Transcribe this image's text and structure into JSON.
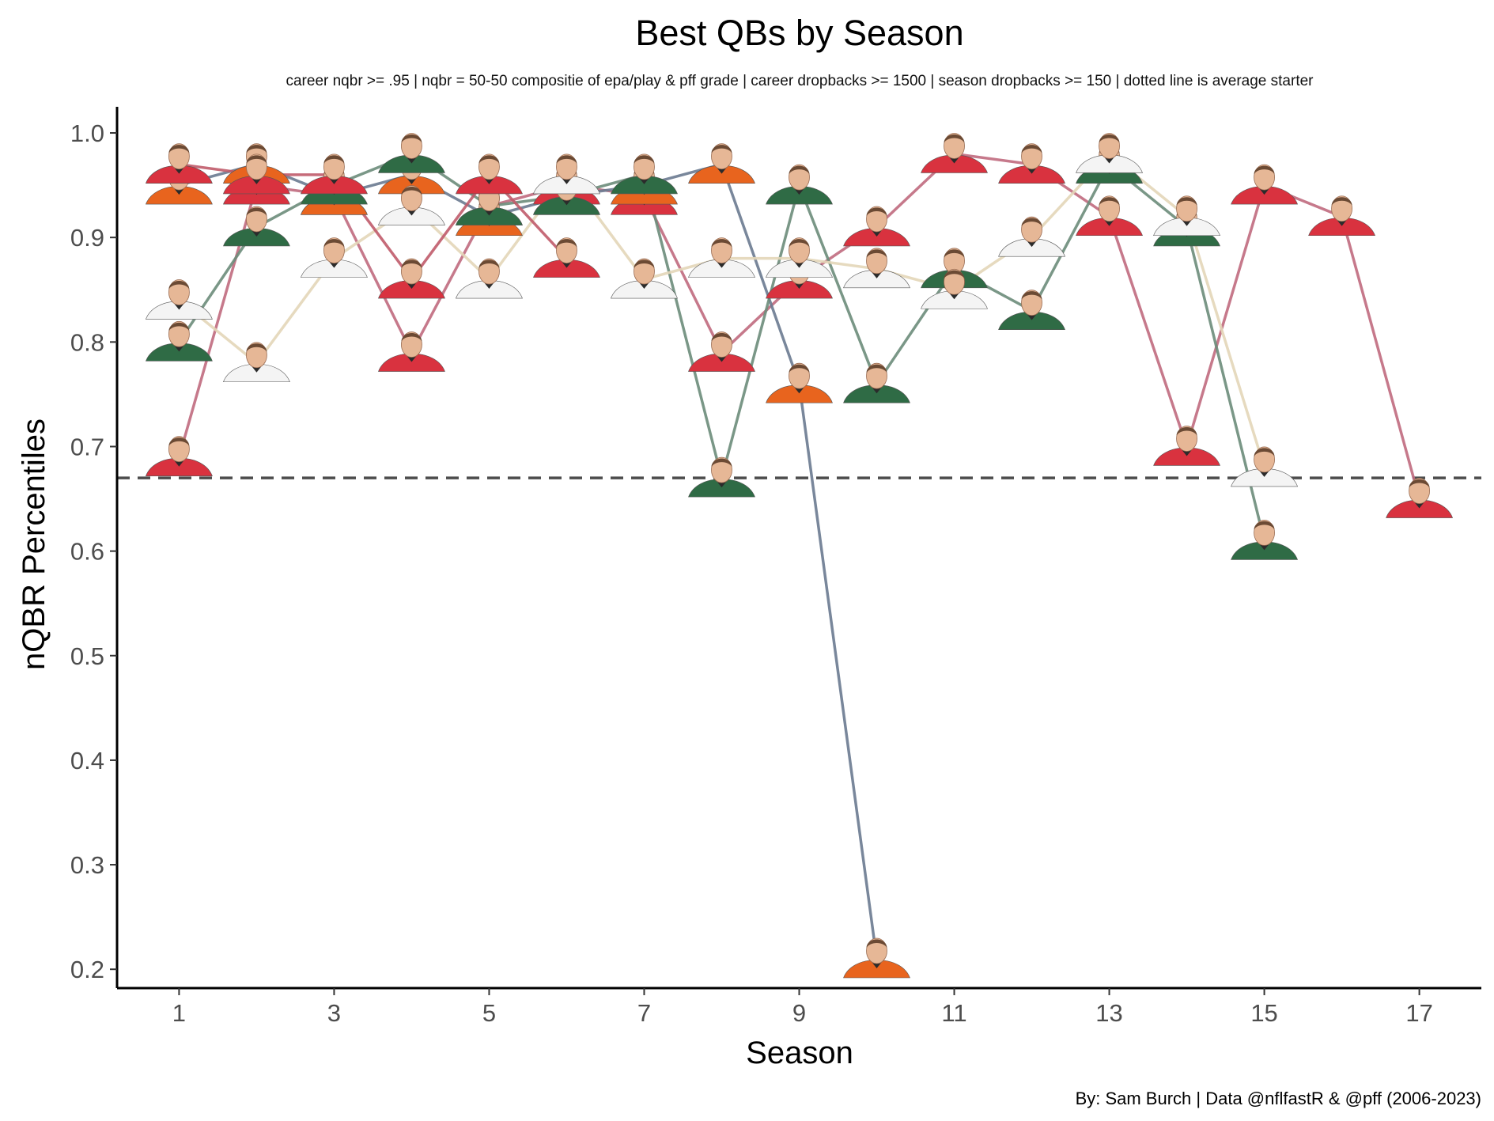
{
  "chart_data": {
    "type": "line",
    "title": "Best QBs by Season",
    "subtitle": "career nqbr >= .95  |  nqbr = 50-50 compositie of epa/play & pff grade  |  career dropbacks >= 1500  |  season dropbacks >= 150  |  dotted line is average starter",
    "caption": "By: Sam Burch  |  Data @nflfastR & @pff (2006-2023)",
    "xlabel": "Season",
    "ylabel": "nQBR Percentiles",
    "xlim": [
      0.2,
      17.8
    ],
    "ylim": [
      0.182,
      1.025
    ],
    "x_ticks": [
      1,
      3,
      5,
      7,
      9,
      11,
      13,
      15,
      17
    ],
    "y_ticks": [
      0.2,
      0.3,
      0.4,
      0.5,
      0.6,
      0.7,
      0.8,
      0.9,
      1.0
    ],
    "x_tick_labels": [
      "1",
      "3",
      "5",
      "7",
      "9",
      "11",
      "13",
      "15",
      "17"
    ],
    "y_tick_labels": [
      "0.2",
      "0.3",
      "0.4",
      "0.5",
      "0.6",
      "0.7",
      "0.8",
      "0.9",
      "1.0"
    ],
    "reference_line": {
      "y": 0.67,
      "style": "dashed",
      "color": "#4d4d4d"
    },
    "grid": false,
    "legend": "none",
    "series": [
      {
        "color": "#c06a7e",
        "jersey": "#d9323f",
        "x": [
          1,
          2,
          3,
          4,
          5,
          6,
          7,
          8,
          9,
          10,
          11,
          12,
          13,
          14,
          15,
          16,
          17
        ],
        "y": [
          0.69,
          0.95,
          0.94,
          0.79,
          0.93,
          0.95,
          0.94,
          0.79,
          0.86,
          0.91,
          0.98,
          0.97,
          0.92,
          0.7,
          0.95,
          0.92,
          0.65
        ]
      },
      {
        "color": "#6a7a90",
        "jersey": "#e8641e",
        "x": [
          1,
          2,
          3,
          4,
          5,
          6,
          7,
          8,
          9,
          10
        ],
        "y": [
          0.95,
          0.97,
          0.94,
          0.96,
          0.92,
          0.94,
          0.95,
          0.97,
          0.76,
          0.21
        ]
      },
      {
        "color": "#6b8c7a",
        "jersey": "#2f6b45",
        "x": [
          1,
          2,
          3,
          4,
          5,
          6,
          7,
          8,
          9,
          10,
          11,
          12,
          13,
          14,
          15
        ],
        "y": [
          0.8,
          0.91,
          0.95,
          0.98,
          0.93,
          0.94,
          0.96,
          0.67,
          0.95,
          0.76,
          0.87,
          0.83,
          0.97,
          0.91,
          0.61
        ]
      },
      {
        "color": "#e3d6b8",
        "jersey": "#f4f4f4",
        "x": [
          1,
          2,
          3,
          4,
          5,
          6,
          7,
          8,
          9,
          10,
          11,
          12,
          13,
          14,
          15
        ],
        "y": [
          0.84,
          0.78,
          0.88,
          0.93,
          0.86,
          0.96,
          0.86,
          0.88,
          0.88,
          0.87,
          0.85,
          0.9,
          0.98,
          0.92,
          0.68
        ]
      },
      {
        "color": "#c05b6a",
        "jersey": "#d9323f",
        "x": [
          1,
          2,
          3,
          4,
          5,
          6
        ],
        "y": [
          0.97,
          0.96,
          0.96,
          0.86,
          0.96,
          0.88
        ]
      }
    ]
  }
}
